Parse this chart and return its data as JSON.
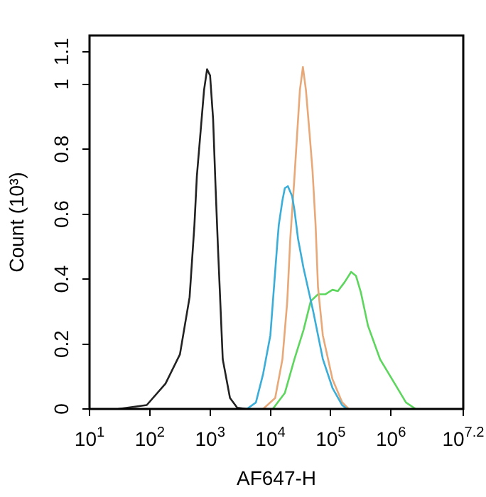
{
  "chart_data": {
    "type": "line",
    "xlabel": "AF647-H",
    "ylabel": "Count (10³)",
    "log": "x",
    "grid": false,
    "marker": "none",
    "line_style": "solid",
    "xlim": [
      10,
      15848932
    ],
    "ylim": [
      0,
      1.15
    ],
    "xticks": [
      {
        "value": 10,
        "label": "10$^{1}$"
      },
      {
        "value": 100,
        "label": "10$^{2}$"
      },
      {
        "value": 1000,
        "label": "10$^{3}$"
      },
      {
        "value": 10000,
        "label": "10$^{4}$"
      },
      {
        "value": 100000,
        "label": "10$^{5}$"
      },
      {
        "value": 1000000,
        "label": "10$^{6}$"
      },
      {
        "value": 15848932,
        "label": "10$^{7.2}$"
      }
    ],
    "yticks": [
      0,
      0.2,
      0.4,
      0.6,
      0.8,
      1,
      1.1
    ],
    "series": [
      {
        "color": "#222222",
        "x": [
          30,
          89,
          182,
          316,
          457,
          550,
          603,
          724,
          794,
          891,
          1000,
          1122,
          1230,
          1349,
          1622,
          2138,
          2818,
          4074
        ],
        "values": [
          0,
          0.012,
          0.078,
          0.168,
          0.344,
          0.567,
          0.716,
          0.893,
          0.982,
          1.046,
          1.027,
          0.893,
          0.688,
          0.5,
          0.153,
          0.034,
          0.004,
          0
        ]
      },
      {
        "color": "#3aaed8",
        "x": [
          4074,
          5754,
          7586,
          10000,
          13183,
          13804,
          15849,
          17378,
          19498,
          22909,
          25119,
          28840,
          35481,
          51286,
          74131,
          107152,
          154882,
          186209
        ],
        "values": [
          0,
          0.02,
          0.108,
          0.227,
          0.523,
          0.567,
          0.642,
          0.68,
          0.686,
          0.656,
          0.612,
          0.523,
          0.434,
          0.301,
          0.154,
          0.065,
          0.012,
          0
        ]
      },
      {
        "color": "#e8a878",
        "x": [
          7586,
          12023,
          15849,
          19055,
          21380,
          25119,
          27542,
          30903,
          34674,
          38905,
          44668,
          50119,
          56234,
          61660,
          74131,
          107152,
          154882,
          199526
        ],
        "values": [
          0,
          0.034,
          0.153,
          0.331,
          0.523,
          0.715,
          0.834,
          0.982,
          1.053,
          0.982,
          0.849,
          0.732,
          0.567,
          0.376,
          0.227,
          0.092,
          0.021,
          0
        ]
      },
      {
        "color": "#5cd65c",
        "x": [
          10965,
          17378,
          25119,
          35481,
          46774,
          61660,
          81283,
          107152,
          131826,
          169824,
          218776,
          263027,
          316228,
          416869,
          660693,
          1148154,
          1778279,
          2570396
        ],
        "values": [
          0,
          0.049,
          0.154,
          0.243,
          0.332,
          0.353,
          0.353,
          0.367,
          0.363,
          0.39,
          0.422,
          0.41,
          0.36,
          0.256,
          0.153,
          0.079,
          0.02,
          0
        ]
      }
    ]
  }
}
